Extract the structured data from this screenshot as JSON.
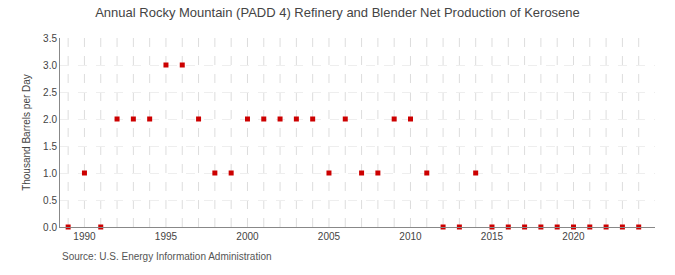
{
  "chart_data": {
    "type": "scatter",
    "title": "Annual Rocky Mountain (PADD 4) Refinery and Blender Net Production of Kerosene",
    "ylabel": "Thousand Barrels per Day",
    "annotations": [
      "Source: U.S. Energy Information Administration"
    ],
    "x": [
      1989,
      1990,
      1991,
      1992,
      1993,
      1994,
      1995,
      1996,
      1997,
      1998,
      1999,
      2000,
      2001,
      2002,
      2003,
      2004,
      2005,
      2006,
      2007,
      2008,
      2009,
      2010,
      2011,
      2012,
      2013,
      2014,
      2015,
      2016,
      2017,
      2018,
      2019,
      2020,
      2021,
      2022,
      2023,
      2024
    ],
    "values": [
      0.0,
      1.0,
      0.0,
      2.0,
      2.0,
      2.0,
      3.0,
      3.0,
      2.0,
      1.0,
      1.0,
      2.0,
      2.0,
      2.0,
      2.0,
      2.0,
      1.0,
      2.0,
      1.0,
      1.0,
      2.0,
      2.0,
      1.0,
      0.0,
      0.0,
      1.0,
      0.0,
      0.0,
      0.0,
      0.0,
      0.0,
      0.0,
      0.0,
      0.0,
      0.0,
      0.0
    ],
    "color": "#cc0000",
    "marker": "square",
    "xlim": [
      1988.5,
      2025
    ],
    "xticks": [
      1990,
      1995,
      2000,
      2005,
      2010,
      2015,
      2020
    ],
    "ylim": [
      0.0,
      3.5
    ],
    "yticks": [
      {
        "value": 0.0,
        "label": "0.0"
      },
      0.5,
      {
        "value": 1.0,
        "label": "1.0"
      },
      1.5,
      {
        "value": 2.0,
        "label": "2.0"
      },
      2.5,
      {
        "value": 3.0,
        "label": "3.0"
      },
      3.5
    ],
    "grid": true
  }
}
